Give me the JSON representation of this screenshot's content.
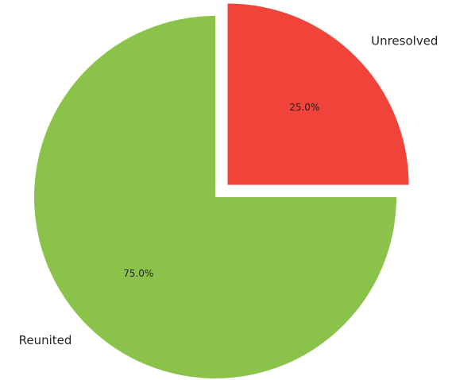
{
  "chart_data": {
    "type": "pie",
    "title": "",
    "slices": [
      {
        "label": "Unresolved",
        "value": 25.0,
        "percent_label": "25.0%",
        "color": "#f0433a",
        "exploded": true
      },
      {
        "label": "Reunited",
        "value": 75.0,
        "percent_label": "75.0%",
        "color": "#8bc34a",
        "exploded": false
      }
    ],
    "start_angle": "top (12 o'clock)",
    "direction": "clockwise",
    "legend": "none"
  }
}
